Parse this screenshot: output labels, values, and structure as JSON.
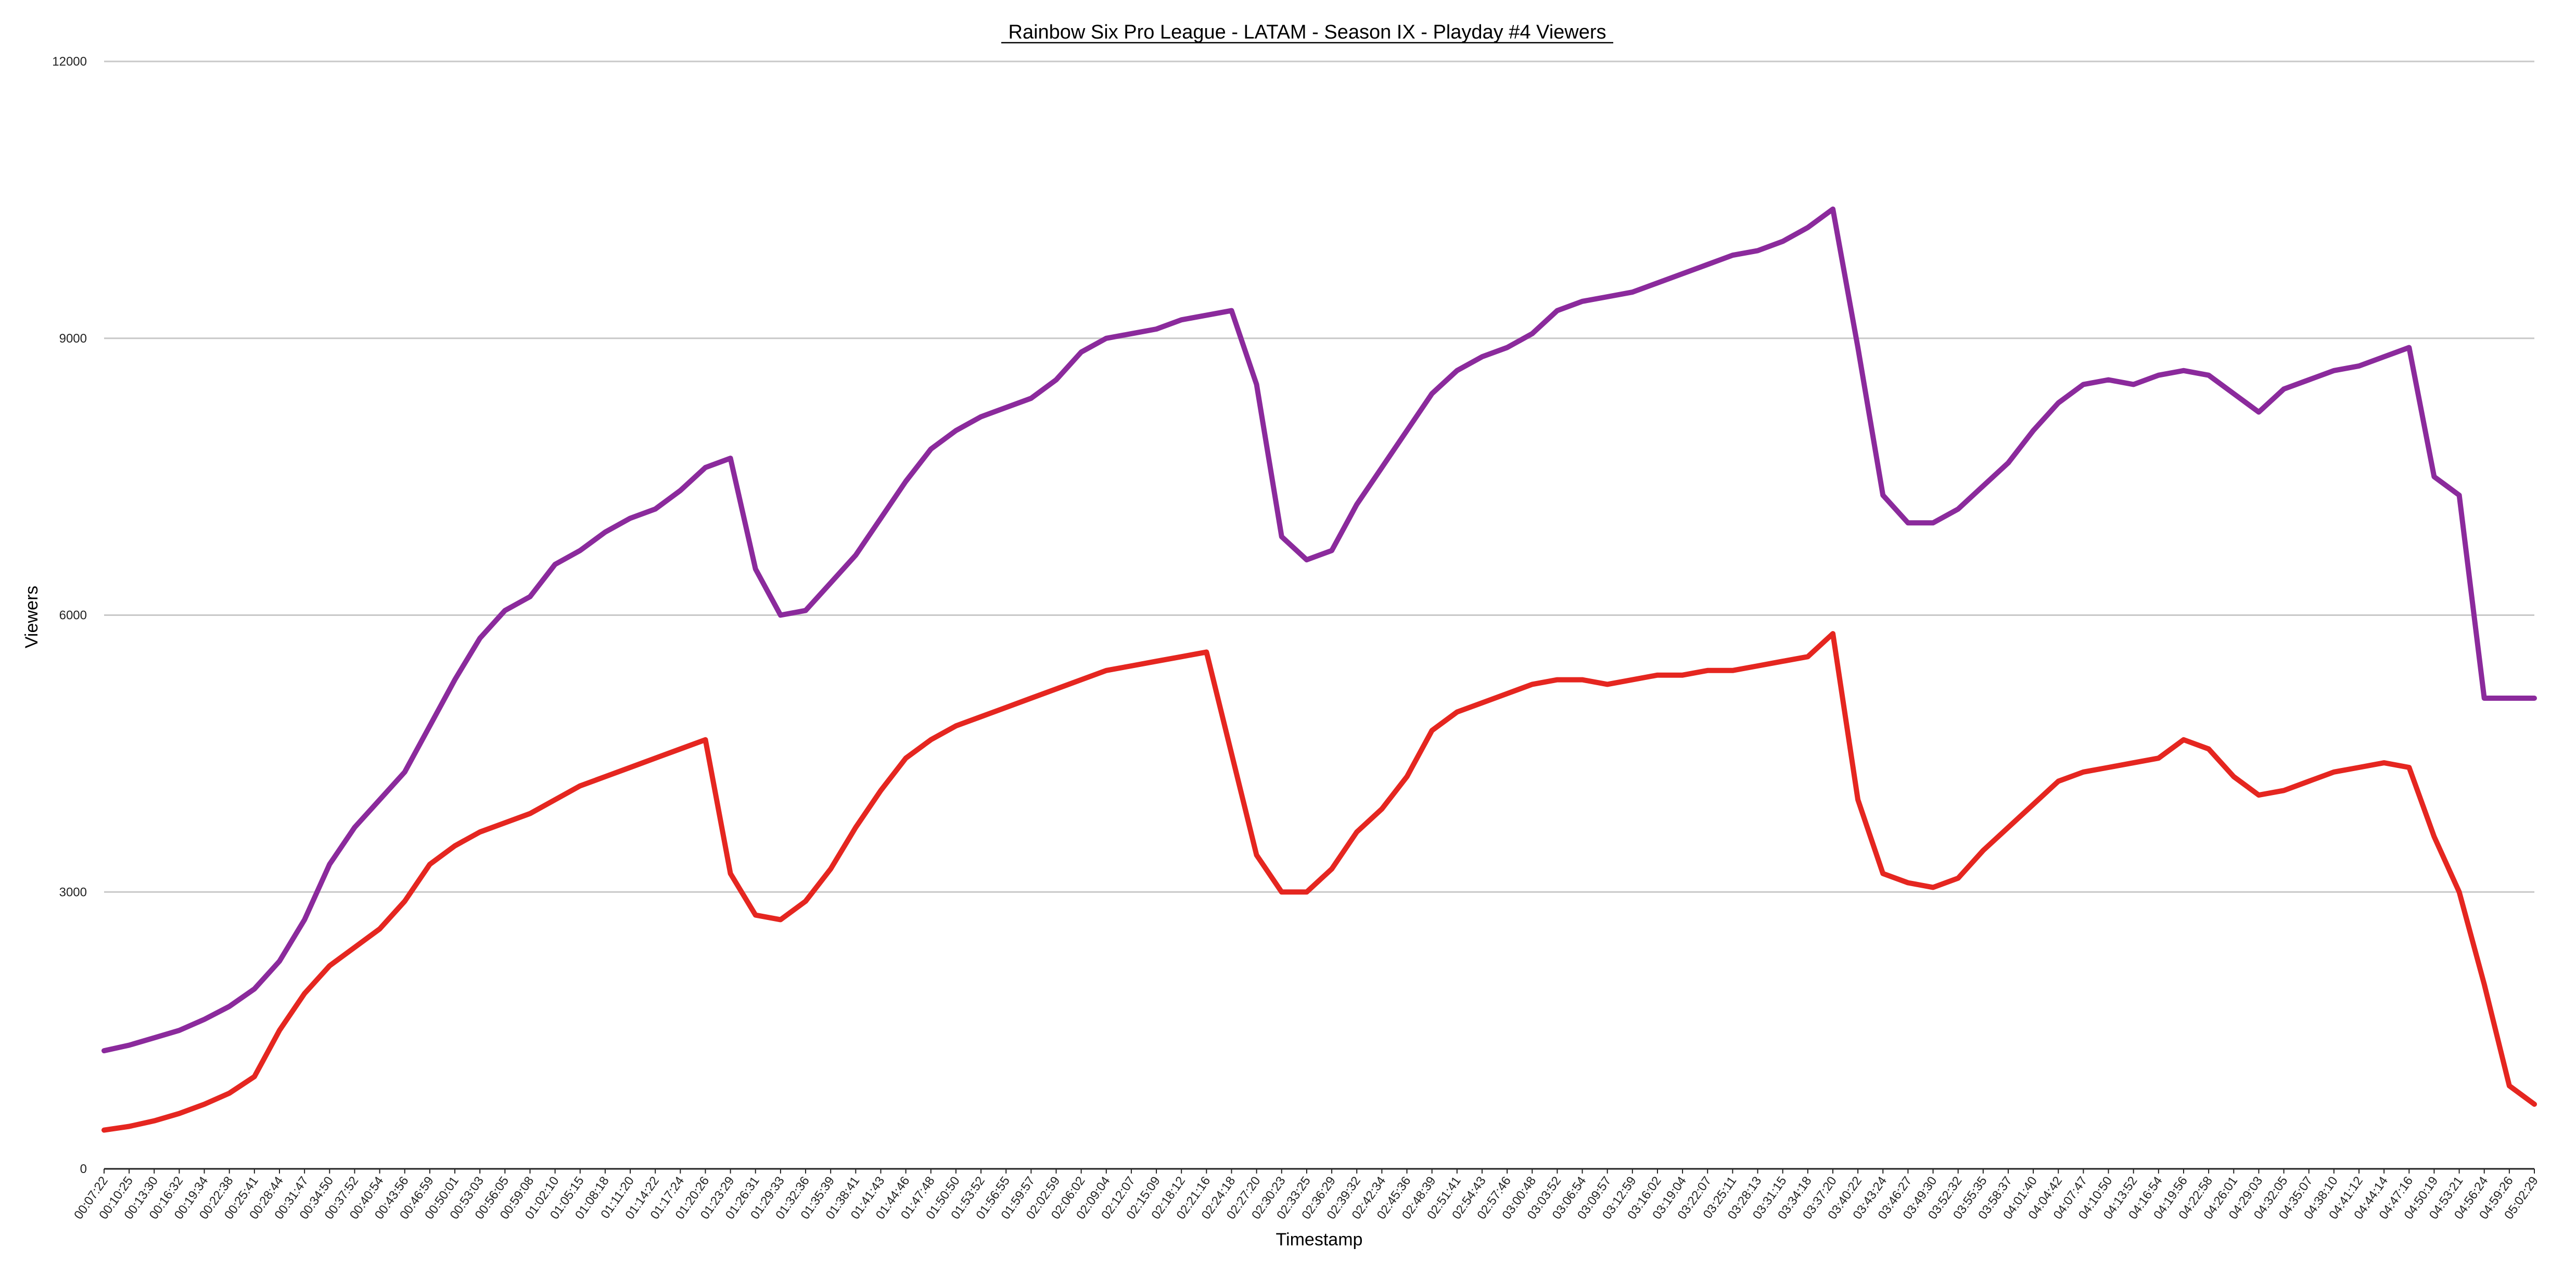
{
  "chart_data": {
    "type": "line",
    "title": "Rainbow Six Pro League - LATAM - Season IX - Playday #4 Viewers",
    "xlabel": "Timestamp",
    "ylabel": "Viewers",
    "ylim": [
      0,
      12000
    ],
    "yticks": [
      0,
      3000,
      6000,
      9000,
      12000
    ],
    "grid": true,
    "x": [
      "00:07:22",
      "00:10:25",
      "00:13:30",
      "00:16:32",
      "00:19:34",
      "00:22:38",
      "00:25:41",
      "00:28:44",
      "00:31:47",
      "00:34:50",
      "00:37:52",
      "00:40:54",
      "00:43:56",
      "00:46:59",
      "00:50:01",
      "00:53:03",
      "00:56:05",
      "00:59:08",
      "01:02:10",
      "01:05:15",
      "01:08:18",
      "01:11:20",
      "01:14:22",
      "01:17:24",
      "01:20:26",
      "01:23:29",
      "01:26:31",
      "01:29:33",
      "01:32:36",
      "01:35:39",
      "01:38:41",
      "01:41:43",
      "01:44:46",
      "01:47:48",
      "01:50:50",
      "01:53:52",
      "01:56:55",
      "01:59:57",
      "02:02:59",
      "02:06:02",
      "02:09:04",
      "02:12:07",
      "02:15:09",
      "02:18:12",
      "02:21:16",
      "02:24:18",
      "02:27:20",
      "02:30:23",
      "02:33:25",
      "02:36:29",
      "02:39:32",
      "02:42:34",
      "02:45:36",
      "02:48:39",
      "02:51:41",
      "02:54:43",
      "02:57:46",
      "03:00:48",
      "03:03:52",
      "03:06:54",
      "03:09:57",
      "03:12:59",
      "03:16:02",
      "03:19:04",
      "03:22:07",
      "03:25:11",
      "03:28:13",
      "03:31:15",
      "03:34:18",
      "03:37:20",
      "03:40:22",
      "03:43:24",
      "03:46:27",
      "03:49:30",
      "03:52:32",
      "03:55:35",
      "03:58:37",
      "04:01:40",
      "04:04:42",
      "04:07:47",
      "04:10:50",
      "04:13:52",
      "04:16:54",
      "04:19:56",
      "04:22:58",
      "04:26:01",
      "04:29:03",
      "04:32:05",
      "04:35:07",
      "04:38:10",
      "04:41:12",
      "04:44:14",
      "04:47:16",
      "04:50:19",
      "04:53:21",
      "04:56:24",
      "04:59:26",
      "05:02:29"
    ],
    "series": [
      {
        "color": "#8b2a9c",
        "values": [
          1280,
          1340,
          1420,
          1500,
          1620,
          1760,
          1950,
          2250,
          2700,
          3300,
          3700,
          4000,
          4300,
          4800,
          5300,
          5750,
          6050,
          6200,
          6550,
          6700,
          6900,
          7050,
          7150,
          7350,
          7600,
          7700,
          6500,
          6000,
          6050,
          6350,
          6650,
          7050,
          7450,
          7800,
          8000,
          8150,
          8250,
          8350,
          8550,
          8850,
          9000,
          9050,
          9100,
          9200,
          9250,
          9300,
          8500,
          6850,
          6600,
          6700,
          7200,
          7600,
          8000,
          8400,
          8650,
          8800,
          8900,
          9050,
          9300,
          9400,
          9450,
          9500,
          9600,
          9700,
          9800,
          9900,
          9950,
          10050,
          10200,
          10400,
          8900,
          7300,
          7000,
          7000,
          7150,
          7400,
          7650,
          8000,
          8300,
          8500,
          8550,
          8500,
          8600,
          8650,
          8600,
          8400,
          8200,
          8450,
          8550,
          8650,
          8700,
          8800,
          8900,
          7500,
          7300,
          5100,
          5100,
          5100
        ]
      },
      {
        "color": "#e52620",
        "values": [
          420,
          460,
          520,
          600,
          700,
          820,
          1000,
          1500,
          1900,
          2200,
          2400,
          2600,
          2900,
          3300,
          3500,
          3650,
          3750,
          3850,
          4000,
          4150,
          4250,
          4350,
          4450,
          4550,
          4650,
          3200,
          2750,
          2700,
          2900,
          3250,
          3700,
          4100,
          4450,
          4650,
          4800,
          4900,
          5000,
          5100,
          5200,
          5300,
          5400,
          5450,
          5500,
          5550,
          5600,
          4500,
          3400,
          3000,
          3000,
          3250,
          3650,
          3900,
          4250,
          4750,
          4950,
          5050,
          5150,
          5250,
          5300,
          5300,
          5250,
          5300,
          5350,
          5350,
          5400,
          5400,
          5450,
          5500,
          5550,
          5800,
          4000,
          3200,
          3100,
          3050,
          3150,
          3450,
          3700,
          3950,
          4200,
          4300,
          4350,
          4400,
          4450,
          4650,
          4550,
          4250,
          4050,
          4100,
          4200,
          4300,
          4350,
          4400,
          4350,
          3600,
          3000,
          2000,
          900,
          700
        ]
      }
    ]
  }
}
